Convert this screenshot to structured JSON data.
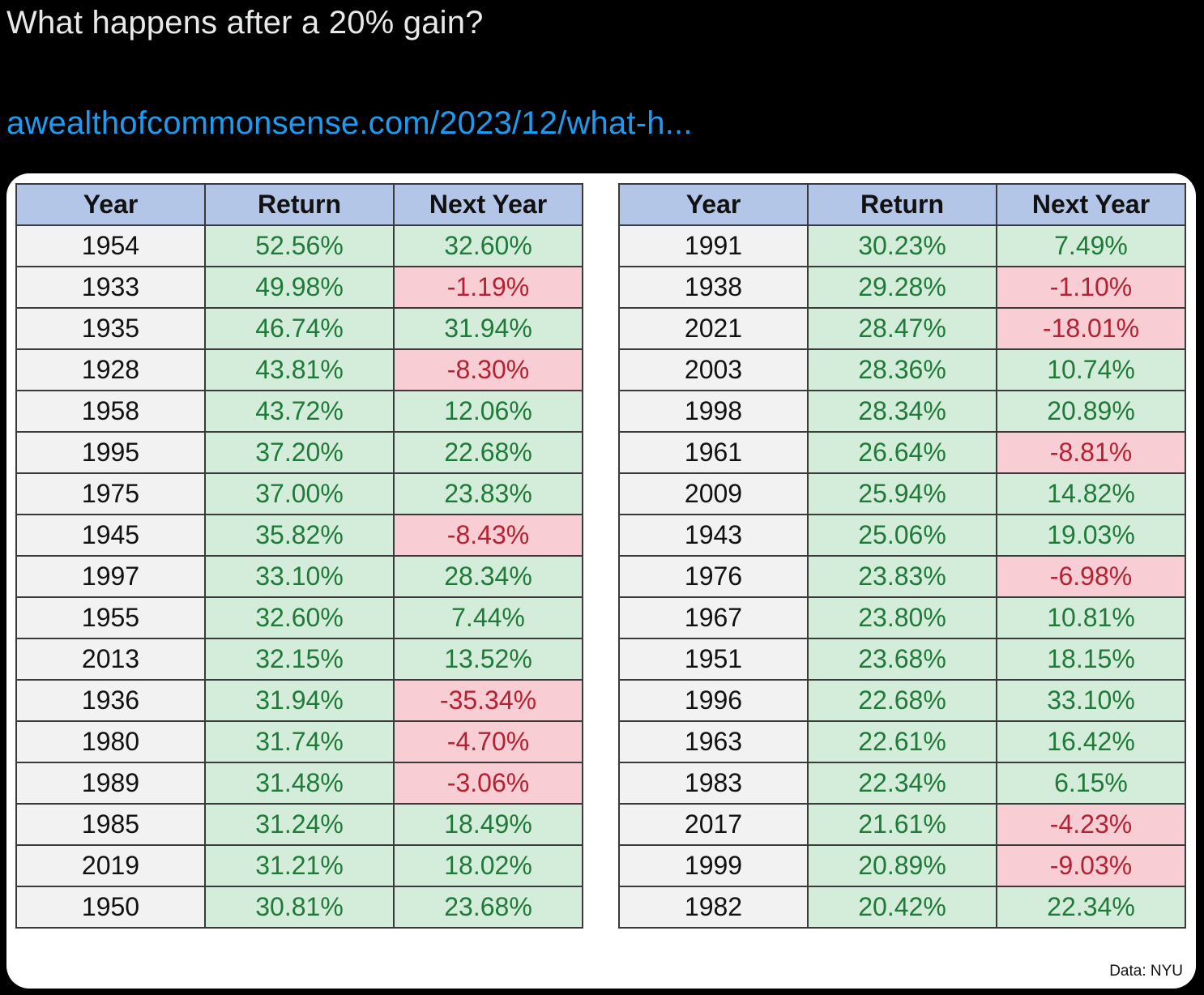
{
  "tweet": {
    "text": "What happens after a 20% gain?",
    "link": "awealthofcommonsense.com/2023/12/what-h..."
  },
  "colors": {
    "header_bg": "#b4c6e7",
    "year_bg": "#f2f2f2",
    "positive_bg": "#d4edda",
    "positive_text": "#1f7a3a",
    "negative_bg": "#f8cdd3",
    "negative_text": "#b22232",
    "link": "#1d9bf0"
  },
  "table": {
    "headers": [
      "Year",
      "Return",
      "Next Year"
    ],
    "left_rows": [
      {
        "year": "1954",
        "return": "52.56%",
        "next": "32.60%"
      },
      {
        "year": "1933",
        "return": "49.98%",
        "next": "-1.19%"
      },
      {
        "year": "1935",
        "return": "46.74%",
        "next": "31.94%"
      },
      {
        "year": "1928",
        "return": "43.81%",
        "next": "-8.30%"
      },
      {
        "year": "1958",
        "return": "43.72%",
        "next": "12.06%"
      },
      {
        "year": "1995",
        "return": "37.20%",
        "next": "22.68%"
      },
      {
        "year": "1975",
        "return": "37.00%",
        "next": "23.83%"
      },
      {
        "year": "1945",
        "return": "35.82%",
        "next": "-8.43%"
      },
      {
        "year": "1997",
        "return": "33.10%",
        "next": "28.34%"
      },
      {
        "year": "1955",
        "return": "32.60%",
        "next": "7.44%"
      },
      {
        "year": "2013",
        "return": "32.15%",
        "next": "13.52%"
      },
      {
        "year": "1936",
        "return": "31.94%",
        "next": "-35.34%"
      },
      {
        "year": "1980",
        "return": "31.74%",
        "next": "-4.70%"
      },
      {
        "year": "1989",
        "return": "31.48%",
        "next": "-3.06%"
      },
      {
        "year": "1985",
        "return": "31.24%",
        "next": "18.49%"
      },
      {
        "year": "2019",
        "return": "31.21%",
        "next": "18.02%"
      },
      {
        "year": "1950",
        "return": "30.81%",
        "next": "23.68%"
      }
    ],
    "right_rows": [
      {
        "year": "1991",
        "return": "30.23%",
        "next": "7.49%"
      },
      {
        "year": "1938",
        "return": "29.28%",
        "next": "-1.10%"
      },
      {
        "year": "2021",
        "return": "28.47%",
        "next": "-18.01%"
      },
      {
        "year": "2003",
        "return": "28.36%",
        "next": "10.74%"
      },
      {
        "year": "1998",
        "return": "28.34%",
        "next": "20.89%"
      },
      {
        "year": "1961",
        "return": "26.64%",
        "next": "-8.81%"
      },
      {
        "year": "2009",
        "return": "25.94%",
        "next": "14.82%"
      },
      {
        "year": "1943",
        "return": "25.06%",
        "next": "19.03%"
      },
      {
        "year": "1976",
        "return": "23.83%",
        "next": "-6.98%"
      },
      {
        "year": "1967",
        "return": "23.80%",
        "next": "10.81%"
      },
      {
        "year": "1951",
        "return": "23.68%",
        "next": "18.15%"
      },
      {
        "year": "1996",
        "return": "22.68%",
        "next": "33.10%"
      },
      {
        "year": "1963",
        "return": "22.61%",
        "next": "16.42%"
      },
      {
        "year": "1983",
        "return": "22.34%",
        "next": "6.15%"
      },
      {
        "year": "2017",
        "return": "21.61%",
        "next": "-4.23%"
      },
      {
        "year": "1999",
        "return": "20.89%",
        "next": "-9.03%"
      },
      {
        "year": "1982",
        "return": "20.42%",
        "next": "22.34%"
      }
    ],
    "source": "Data: NYU"
  }
}
